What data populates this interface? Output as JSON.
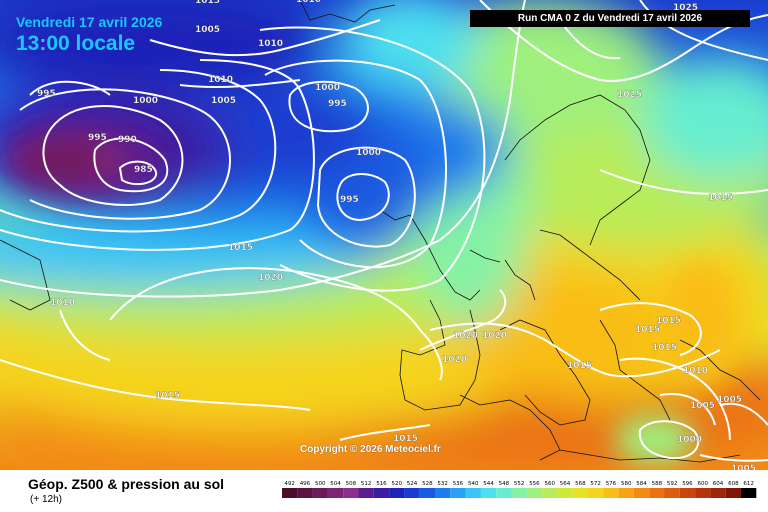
{
  "header": {
    "date": "Vendredi 17 avril 2026",
    "local_time": "13:00 locale",
    "run": "Run CMA 0 Z du Vendredi 17 avril 2026"
  },
  "footer": {
    "title": "Géop. Z500 & pression au sol",
    "subtitle": "(+ 12h)",
    "copyright": "Copyright © 2026 Meteociel.fr"
  },
  "legend": {
    "values": [
      "492",
      "496",
      "500",
      "504",
      "508",
      "512",
      "516",
      "520",
      "524",
      "528",
      "532",
      "536",
      "540",
      "544",
      "548",
      "552",
      "556",
      "560",
      "564",
      "568",
      "572",
      "576",
      "580",
      "584",
      "588",
      "592",
      "596",
      "600",
      "604",
      "608",
      "612"
    ],
    "colors": [
      "#4a0d2a",
      "#5c1340",
      "#6e1a5a",
      "#7d2476",
      "#8a2f8e",
      "#5b1e8f",
      "#3a1fa3",
      "#1f24b8",
      "#1a3dd0",
      "#1a5ae0",
      "#1f7ceb",
      "#2aa0f2",
      "#39c4f5",
      "#4ee0ef",
      "#66edd0",
      "#84f2a6",
      "#9ff07d",
      "#b8ec58",
      "#d0e83a",
      "#e6e22a",
      "#f5d41f",
      "#f9bd19",
      "#f7a316",
      "#f28a14",
      "#ea7212",
      "#dc5c10",
      "#c9470e",
      "#b4350c",
      "#9c250a",
      "#7d1608",
      "#000000"
    ]
  },
  "isobars": [
    {
      "label": "995"
    },
    {
      "label": "1000"
    },
    {
      "label": "995"
    },
    {
      "label": "990"
    },
    {
      "label": "985"
    },
    {
      "label": "1005"
    },
    {
      "label": "1010"
    },
    {
      "label": "1005"
    },
    {
      "label": "1010"
    },
    {
      "label": "1015"
    },
    {
      "label": "1010"
    },
    {
      "label": "1000"
    },
    {
      "label": "995"
    },
    {
      "label": "1000"
    },
    {
      "label": "995"
    },
    {
      "label": "1015"
    },
    {
      "label": "1020"
    },
    {
      "label": "1010"
    },
    {
      "label": "1015"
    },
    {
      "label": "1025"
    },
    {
      "label": "1025"
    },
    {
      "label": "1015"
    },
    {
      "label": "1020"
    },
    {
      "label": "1020"
    },
    {
      "label": "1020"
    },
    {
      "label": "1015"
    },
    {
      "label": "1015"
    },
    {
      "label": "1015"
    },
    {
      "label": "1015"
    },
    {
      "label": "1015"
    },
    {
      "label": "1010"
    },
    {
      "label": "1005"
    },
    {
      "label": "1005"
    },
    {
      "label": "1000"
    },
    {
      "label": "1005"
    }
  ]
}
